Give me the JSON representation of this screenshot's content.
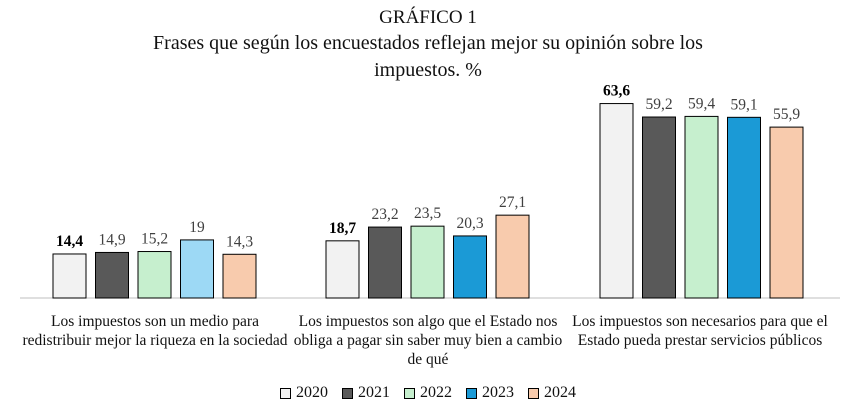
{
  "chart_data": {
    "type": "bar",
    "title": "GRÁFICO 1",
    "subtitle": "Frases que según los encuestados reflejan mejor su opinión sobre los impuestos. %",
    "categories": [
      "Los impuestos son un medio para redistribuir mejor la riqueza en la sociedad",
      "Los impuestos son algo que el Estado nos obliga a pagar sin saber muy bien a cambio de qué",
      "Los impuestos son necesarios para que el Estado pueda prestar servicios públicos"
    ],
    "series": [
      {
        "name": "2020",
        "color": "#f2f2f2",
        "values": [
          14.4,
          18.7,
          63.6
        ],
        "labels": [
          "14,4",
          "18,7",
          "63,6"
        ]
      },
      {
        "name": "2021",
        "color": "#595959",
        "values": [
          14.9,
          23.2,
          59.2
        ],
        "labels": [
          "14,9",
          "23,2",
          "59,2"
        ]
      },
      {
        "name": "2022",
        "color": "#c6efce",
        "values": [
          15.2,
          23.5,
          59.4
        ],
        "labels": [
          "15,2",
          "23,5",
          "59,4"
        ]
      },
      {
        "name": "2023",
        "color": "#1b9ad6",
        "values": [
          19,
          20.3,
          59.1
        ],
        "labels": [
          "19",
          "20,3",
          "59,1"
        ]
      },
      {
        "name": "2024",
        "color": "#f8cbad",
        "values": [
          14.3,
          27.1,
          55.9
        ],
        "labels": [
          "14,3",
          "27,1",
          "55,9"
        ]
      }
    ],
    "highlight": {
      "category_index": 0,
      "series_index": 3,
      "color": "#9dd9f5"
    },
    "ylim": [
      0,
      70
    ],
    "grid": false,
    "legend_position": "bottom"
  }
}
